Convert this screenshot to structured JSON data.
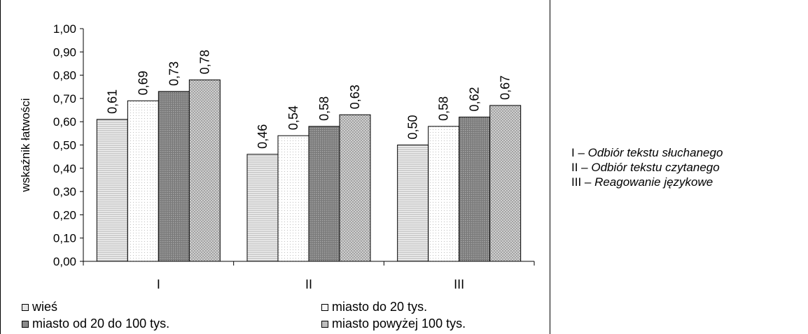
{
  "chart_data": {
    "type": "bar",
    "ylabel": "wskaźnik łatwości",
    "ylim": [
      0,
      1
    ],
    "ytick_labels": [
      "0,00",
      "0,10",
      "0,20",
      "0,30",
      "0,40",
      "0,50",
      "0,60",
      "0,70",
      "0,80",
      "0,90",
      "1,00"
    ],
    "categories": [
      "I",
      "II",
      "III"
    ],
    "series": [
      {
        "name": "wieś",
        "values": [
          0.61,
          0.46,
          0.5
        ],
        "labels": [
          "0,61",
          "0,46",
          "0,50"
        ],
        "color": "#e6e6e6",
        "pattern": "hlines"
      },
      {
        "name": "miasto do 20 tys.",
        "values": [
          0.69,
          0.54,
          0.58
        ],
        "labels": [
          "0,69",
          "0,54",
          "0,58"
        ],
        "color": "#f8f8f8",
        "pattern": "dots"
      },
      {
        "name": "miasto od 20 do 100 tys.",
        "values": [
          0.73,
          0.58,
          0.62
        ],
        "labels": [
          "0,73",
          "0,58",
          "0,62"
        ],
        "color": "#8a8a8a",
        "pattern": "grid"
      },
      {
        "name": "miasto powyżej 100 tys.",
        "values": [
          0.78,
          0.63,
          0.67
        ],
        "labels": [
          "0,78",
          "0,63",
          "0,67"
        ],
        "color": "#bdbdbd",
        "pattern": "check"
      }
    ],
    "legend_position": "bottom",
    "grid": false
  },
  "side_notes": [
    {
      "prefix": "I – ",
      "text": "Odbiór tekstu słuchanego"
    },
    {
      "prefix": "II – ",
      "text": "Odbiór tekstu czytanego"
    },
    {
      "prefix": "III – ",
      "text": "Reagowanie językowe"
    }
  ]
}
